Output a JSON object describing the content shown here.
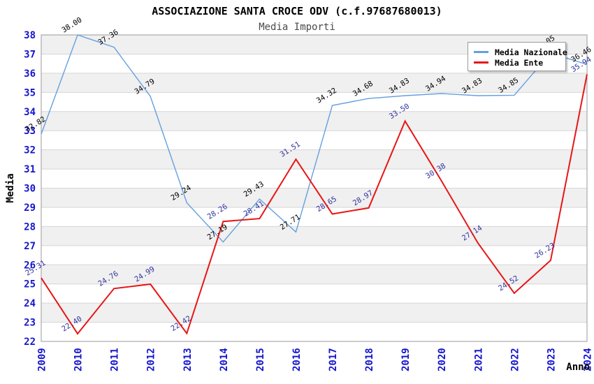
{
  "title": "ASSOCIAZIONE SANTA CROCE ODV (c.f.97687680013)",
  "subtitle": "Media Importi",
  "colors": {
    "axis_text": "#1515cd",
    "axis_title": "#000000",
    "grid_line": "#d6d6d6",
    "band": "#f0f0f0",
    "plot_border": "#9a9a9a",
    "nazionale_line": "#64a0e0",
    "ente_line": "#e81515",
    "nazionale_label": "#000000",
    "ente_label": "#3333a0"
  },
  "legend": {
    "items": [
      {
        "label": "Media Nazionale",
        "color": "#64a0e0"
      },
      {
        "label": "Media Ente",
        "color": "#e81515"
      }
    ]
  },
  "chart_data": {
    "type": "line",
    "title": "ASSOCIAZIONE SANTA CROCE ODV (c.f.97687680013)",
    "subtitle": "Media Importi",
    "xlabel": "Anno",
    "ylabel": "Media",
    "ylim": [
      22,
      38
    ],
    "y_ticks": [
      22,
      23,
      24,
      25,
      26,
      27,
      28,
      29,
      30,
      31,
      32,
      33,
      34,
      35,
      36,
      37,
      38
    ],
    "grid": true,
    "banded_background": true,
    "legend_position": "top-right",
    "x": [
      "2009",
      "2010",
      "2011",
      "2012",
      "2013",
      "2014",
      "2015",
      "2016",
      "2017",
      "2018",
      "2019",
      "2020",
      "2021",
      "2022",
      "2023",
      "2024"
    ],
    "series": [
      {
        "name": "Media Nazionale",
        "color": "#64a0e0",
        "label_color": "#000000",
        "line_width": 1.4,
        "values": [
          32.82,
          38.0,
          37.36,
          34.79,
          29.24,
          27.19,
          29.43,
          27.71,
          34.32,
          34.68,
          34.83,
          34.94,
          34.83,
          34.85,
          37.05,
          36.46
        ]
      },
      {
        "name": "Media Ente",
        "color": "#e81515",
        "label_color": "#3333a0",
        "line_width": 2,
        "values": [
          25.31,
          22.4,
          24.76,
          24.99,
          22.42,
          28.26,
          28.41,
          31.51,
          28.65,
          28.97,
          33.5,
          30.38,
          27.14,
          24.52,
          26.23,
          35.94
        ]
      }
    ]
  }
}
